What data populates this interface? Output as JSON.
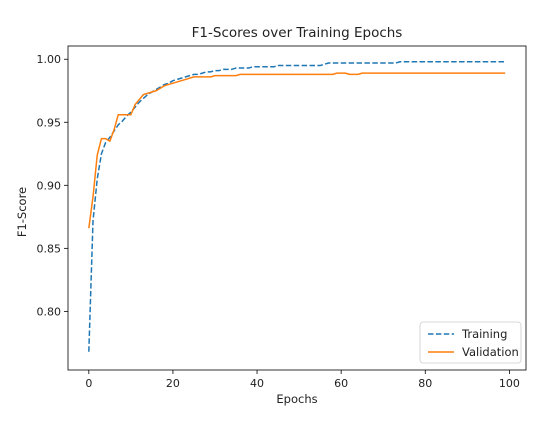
{
  "chart_data": {
    "type": "line",
    "title": "F1-Scores over Training Epochs",
    "xlabel": "Epochs",
    "ylabel": "F1-Score",
    "xlim": [
      -4.95,
      103.95
    ],
    "ylim": [
      0.7535,
      1.0105
    ],
    "xticks": [
      0,
      20,
      40,
      60,
      80,
      100
    ],
    "xtick_labels": [
      "0",
      "20",
      "40",
      "60",
      "80",
      "100"
    ],
    "yticks": [
      0.8,
      0.85,
      0.9,
      0.95,
      1.0
    ],
    "ytick_labels": [
      "0.80",
      "0.85",
      "0.90",
      "0.95",
      "1.00"
    ],
    "grid": false,
    "legend_position": "lower right",
    "x": [
      0,
      1,
      2,
      3,
      4,
      5,
      6,
      7,
      8,
      9,
      10,
      11,
      12,
      13,
      14,
      15,
      16,
      17,
      18,
      19,
      20,
      21,
      22,
      23,
      24,
      25,
      26,
      27,
      28,
      29,
      30,
      31,
      32,
      33,
      34,
      35,
      36,
      37,
      38,
      39,
      40,
      41,
      42,
      43,
      44,
      45,
      46,
      47,
      48,
      49,
      50,
      51,
      52,
      53,
      54,
      55,
      56,
      57,
      58,
      59,
      60,
      61,
      62,
      63,
      64,
      65,
      66,
      67,
      68,
      69,
      70,
      71,
      72,
      73,
      74,
      75,
      76,
      77,
      78,
      79,
      80,
      81,
      82,
      83,
      84,
      85,
      86,
      87,
      88,
      89,
      90,
      91,
      92,
      93,
      94,
      95,
      96,
      97,
      98,
      99
    ],
    "series": [
      {
        "name": "Training",
        "color": "#1f77b4",
        "linestyle": "dashed",
        "values": [
          0.768,
          0.872,
          0.905,
          0.925,
          0.934,
          0.938,
          0.943,
          0.948,
          0.951,
          0.955,
          0.958,
          0.962,
          0.966,
          0.969,
          0.972,
          0.974,
          0.976,
          0.978,
          0.98,
          0.981,
          0.983,
          0.984,
          0.985,
          0.986,
          0.987,
          0.988,
          0.988,
          0.989,
          0.99,
          0.99,
          0.991,
          0.991,
          0.992,
          0.992,
          0.992,
          0.993,
          0.993,
          0.993,
          0.993,
          0.994,
          0.994,
          0.994,
          0.994,
          0.994,
          0.994,
          0.995,
          0.995,
          0.995,
          0.995,
          0.995,
          0.995,
          0.995,
          0.995,
          0.995,
          0.995,
          0.995,
          0.996,
          0.997,
          0.997,
          0.997,
          0.997,
          0.997,
          0.997,
          0.997,
          0.997,
          0.997,
          0.997,
          0.997,
          0.997,
          0.997,
          0.997,
          0.997,
          0.997,
          0.997,
          0.998,
          0.998,
          0.998,
          0.998,
          0.998,
          0.998,
          0.998,
          0.998,
          0.998,
          0.998,
          0.998,
          0.998,
          0.998,
          0.998,
          0.998,
          0.998,
          0.998,
          0.998,
          0.998,
          0.998,
          0.998,
          0.998,
          0.998,
          0.998,
          0.998,
          0.998
        ]
      },
      {
        "name": "Validation",
        "color": "#ff7f0e",
        "linestyle": "solid",
        "values": [
          0.866,
          0.891,
          0.924,
          0.937,
          0.937,
          0.935,
          0.944,
          0.956,
          0.956,
          0.956,
          0.956,
          0.964,
          0.968,
          0.972,
          0.973,
          0.974,
          0.975,
          0.977,
          0.979,
          0.98,
          0.981,
          0.982,
          0.983,
          0.984,
          0.985,
          0.986,
          0.986,
          0.986,
          0.986,
          0.986,
          0.987,
          0.987,
          0.987,
          0.987,
          0.987,
          0.987,
          0.988,
          0.988,
          0.988,
          0.988,
          0.988,
          0.988,
          0.988,
          0.988,
          0.988,
          0.988,
          0.988,
          0.988,
          0.988,
          0.988,
          0.988,
          0.988,
          0.988,
          0.988,
          0.988,
          0.988,
          0.988,
          0.988,
          0.988,
          0.989,
          0.989,
          0.989,
          0.988,
          0.988,
          0.988,
          0.989,
          0.989,
          0.989,
          0.989,
          0.989,
          0.989,
          0.989,
          0.989,
          0.989,
          0.989,
          0.989,
          0.989,
          0.989,
          0.989,
          0.989,
          0.989,
          0.989,
          0.989,
          0.989,
          0.989,
          0.989,
          0.989,
          0.989,
          0.989,
          0.989,
          0.989,
          0.989,
          0.989,
          0.989,
          0.989,
          0.989,
          0.989,
          0.989,
          0.989,
          0.989
        ]
      }
    ]
  }
}
